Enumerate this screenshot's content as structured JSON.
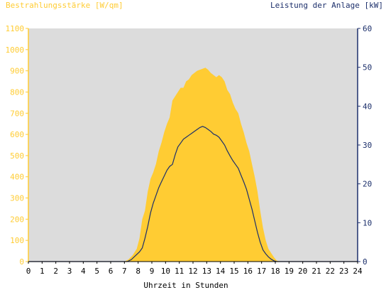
{
  "chart_data": {
    "type": "area",
    "left_axis_title": "Bestrahlungsstärke [W/qm]",
    "right_axis_title": "Leistung der Anlage [kW]",
    "xlabel": "Uhrzeit in Stunden",
    "xlim": [
      0,
      24
    ],
    "ylim_left": [
      0,
      1100
    ],
    "ylim_right": [
      0,
      60
    ],
    "x_ticks": [
      "0",
      "1",
      "2",
      "3",
      "4",
      "5",
      "6",
      "7",
      "8",
      "9",
      "10",
      "11",
      "12",
      "13",
      "14",
      "15",
      "16",
      "17",
      "18",
      "19",
      "20",
      "21",
      "22",
      "23",
      "24"
    ],
    "y_left_ticks": [
      "0",
      "100",
      "200",
      "300",
      "400",
      "500",
      "600",
      "700",
      "800",
      "900",
      "1000",
      "1100"
    ],
    "y_right_ticks": [
      "0",
      "10",
      "20",
      "30",
      "40",
      "50",
      "60"
    ],
    "grid": false,
    "colors": {
      "plot_background": "#dcdcdc",
      "irradiance_fill": "#ffcc33",
      "left_axis": "#ffcc33",
      "power_line": "#1c2f6b",
      "right_axis": "#1c2f6b",
      "frame": "#000000"
    },
    "series": [
      {
        "name": "Bestrahlungsstärke [W/qm]",
        "axis": "left",
        "type": "area",
        "x": [
          0,
          7.0,
          7.3,
          7.6,
          7.9,
          8.1,
          8.3,
          8.5,
          8.7,
          8.9,
          9.1,
          9.3,
          9.5,
          9.7,
          9.9,
          10.1,
          10.3,
          10.5,
          10.7,
          10.9,
          11.1,
          11.3,
          11.5,
          11.7,
          11.9,
          12.1,
          12.3,
          12.5,
          12.7,
          12.9,
          13.1,
          13.3,
          13.5,
          13.7,
          13.9,
          14.1,
          14.3,
          14.5,
          14.7,
          14.9,
          15.1,
          15.3,
          15.5,
          15.7,
          15.9,
          16.1,
          16.3,
          16.5,
          16.7,
          16.9,
          17.1,
          17.3,
          17.5,
          17.7,
          17.9,
          18.1,
          18.3,
          24
        ],
        "y": [
          0,
          0,
          10,
          30,
          60,
          110,
          200,
          240,
          330,
          390,
          420,
          460,
          520,
          560,
          610,
          650,
          680,
          760,
          780,
          800,
          820,
          820,
          850,
          860,
          880,
          890,
          900,
          905,
          910,
          915,
          905,
          890,
          880,
          870,
          880,
          870,
          850,
          810,
          790,
          750,
          720,
          700,
          650,
          610,
          560,
          520,
          460,
          400,
          330,
          240,
          160,
          100,
          60,
          40,
          20,
          5,
          0,
          0
        ]
      },
      {
        "name": "Leistung der Anlage [kW]",
        "axis": "right",
        "type": "line",
        "x": [
          0,
          7.2,
          7.5,
          7.8,
          8.1,
          8.3,
          8.5,
          8.7,
          8.9,
          9.1,
          9.3,
          9.5,
          9.7,
          9.9,
          10.1,
          10.3,
          10.5,
          10.7,
          10.9,
          11.1,
          11.3,
          11.5,
          11.7,
          11.9,
          12.1,
          12.3,
          12.5,
          12.7,
          12.9,
          13.1,
          13.3,
          13.5,
          13.7,
          13.9,
          14.1,
          14.3,
          14.5,
          14.7,
          14.9,
          15.1,
          15.3,
          15.5,
          15.7,
          15.9,
          16.1,
          16.3,
          16.5,
          16.7,
          16.9,
          17.1,
          17.3,
          17.5,
          17.7,
          17.9,
          18.1,
          24
        ],
        "y": [
          0,
          0,
          0.5,
          1.5,
          2.5,
          3.5,
          6,
          9,
          12.5,
          15,
          17,
          19,
          20.5,
          22,
          23.5,
          24.5,
          25,
          27.5,
          29.5,
          30.5,
          31.5,
          32,
          32.5,
          33,
          33.5,
          34,
          34.5,
          34.8,
          34.5,
          34,
          33.5,
          32.8,
          32.5,
          32,
          31,
          30,
          28.5,
          27.2,
          26,
          25,
          24,
          22.2,
          20.5,
          18.6,
          16,
          13.5,
          10.5,
          7.5,
          5,
          3,
          2,
          1.2,
          0.6,
          0.2,
          0,
          0
        ]
      }
    ]
  }
}
